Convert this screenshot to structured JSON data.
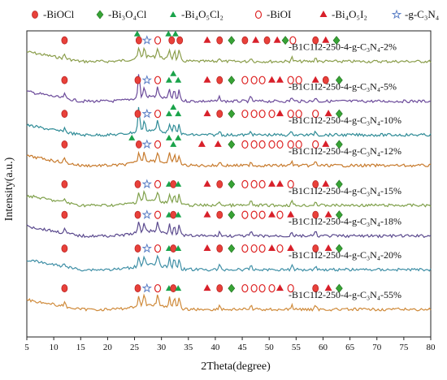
{
  "chart_data": {
    "type": "line",
    "xlabel": "2Theta(degree)",
    "ylabel": "Intensity(a.u.)",
    "xlim": [
      5,
      80
    ],
    "xticks": [
      5,
      10,
      15,
      20,
      25,
      30,
      35,
      40,
      45,
      50,
      55,
      60,
      65,
      70,
      75,
      80
    ],
    "grid": false,
    "legend_position": "top",
    "legend": [
      {
        "marker": "circle-filled",
        "label": "BiOCl",
        "color": "#e8413a"
      },
      {
        "marker": "diamond",
        "label": "Bi₃O₄Cl",
        "color": "#37a335"
      },
      {
        "marker": "triangle-up",
        "label": "Bi₄O₅Cl₂",
        "color": "#1aa34a"
      },
      {
        "marker": "circle-open",
        "label": "BiOI",
        "color": "#e8413a"
      },
      {
        "marker": "triangle-filled",
        "label": "Bi₄O₅I₂",
        "color": "#d8202a"
      },
      {
        "marker": "star",
        "label": "g-C₃N₄",
        "color": "#5b7fc6"
      }
    ],
    "series": [
      {
        "name": "B1C1I2-250-4-g-C₃N₄-2%",
        "color": "#8a9d4a",
        "base": 0.9,
        "markers": [
          {
            "x": 12,
            "m": "circle-filled"
          },
          {
            "x": 25.5,
            "m": "triangle-up"
          },
          {
            "x": 25.8,
            "m": "circle-filled"
          },
          {
            "x": 27.3,
            "m": "star"
          },
          {
            "x": 29.3,
            "m": "circle-open"
          },
          {
            "x": 31.3,
            "m": "triangle-up"
          },
          {
            "x": 31.9,
            "m": "circle-filled"
          },
          {
            "x": 32.6,
            "m": "triangle-up"
          },
          {
            "x": 33.4,
            "m": "circle-filled"
          },
          {
            "x": 38.5,
            "m": "triangle-filled"
          },
          {
            "x": 40.8,
            "m": "circle-filled"
          },
          {
            "x": 43,
            "m": "diamond"
          },
          {
            "x": 45.5,
            "m": "circle-filled"
          },
          {
            "x": 47.5,
            "m": "triangle-filled"
          },
          {
            "x": 49.6,
            "m": "circle-filled"
          },
          {
            "x": 51.5,
            "m": "triangle-filled"
          },
          {
            "x": 53,
            "m": "diamond"
          },
          {
            "x": 54.4,
            "m": "circle-open"
          },
          {
            "x": 58.6,
            "m": "circle-filled"
          },
          {
            "x": 60.5,
            "m": "triangle-filled"
          },
          {
            "x": 62.5,
            "m": "diamond"
          }
        ]
      },
      {
        "name": "B1C1I2-250-4-g-C₃N₄-5%",
        "color": "#6b4a9a",
        "base": 0.77,
        "markers": [
          {
            "x": 12,
            "m": "circle-filled"
          },
          {
            "x": 25.6,
            "m": "circle-filled"
          },
          {
            "x": 27.3,
            "m": "star"
          },
          {
            "x": 29.3,
            "m": "circle-open"
          },
          {
            "x": 31.4,
            "m": "triangle-up"
          },
          {
            "x": 32.2,
            "m": "triangle-up"
          },
          {
            "x": 33.1,
            "m": "triangle-up"
          },
          {
            "x": 38.5,
            "m": "triangle-filled"
          },
          {
            "x": 40.8,
            "m": "circle-filled"
          },
          {
            "x": 43,
            "m": "diamond"
          },
          {
            "x": 45.5,
            "m": "circle-open"
          },
          {
            "x": 47.2,
            "m": "circle-open"
          },
          {
            "x": 48.7,
            "m": "circle-open"
          },
          {
            "x": 50.5,
            "m": "triangle-filled"
          },
          {
            "x": 52,
            "m": "triangle-filled"
          },
          {
            "x": 54,
            "m": "circle-open"
          },
          {
            "x": 55.5,
            "m": "circle-open"
          },
          {
            "x": 58.6,
            "m": "triangle-filled"
          },
          {
            "x": 60.5,
            "m": "circle-filled"
          },
          {
            "x": 63,
            "m": "diamond"
          }
        ]
      },
      {
        "name": "B1C1I2-250-4-g-C₃N₄-10%",
        "color": "#2e8b96",
        "base": 0.66,
        "markers": [
          {
            "x": 12,
            "m": "circle-filled"
          },
          {
            "x": 25.6,
            "m": "circle-filled"
          },
          {
            "x": 27.3,
            "m": "star"
          },
          {
            "x": 29.3,
            "m": "circle-open"
          },
          {
            "x": 31.4,
            "m": "triangle-up"
          },
          {
            "x": 32.2,
            "m": "triangle-up"
          },
          {
            "x": 33.1,
            "m": "triangle-up"
          },
          {
            "x": 38.5,
            "m": "triangle-filled"
          },
          {
            "x": 40.8,
            "m": "circle-filled"
          },
          {
            "x": 43,
            "m": "diamond"
          },
          {
            "x": 45.5,
            "m": "circle-open"
          },
          {
            "x": 47.2,
            "m": "circle-open"
          },
          {
            "x": 48.7,
            "m": "circle-open"
          },
          {
            "x": 50.5,
            "m": "circle-open"
          },
          {
            "x": 52,
            "m": "triangle-filled"
          },
          {
            "x": 54,
            "m": "circle-open"
          },
          {
            "x": 55.5,
            "m": "circle-open"
          },
          {
            "x": 58.6,
            "m": "circle-open"
          },
          {
            "x": 61,
            "m": "triangle-filled"
          },
          {
            "x": 63,
            "m": "diamond"
          }
        ]
      },
      {
        "name": "B1C1I2-250-4-g-C₃N₄-12%",
        "color": "#c77a2c",
        "base": 0.56,
        "markers": [
          {
            "x": 12,
            "m": "circle-filled"
          },
          {
            "x": 24.5,
            "m": "triangle-up"
          },
          {
            "x": 25.8,
            "m": "circle-filled"
          },
          {
            "x": 27.3,
            "m": "star"
          },
          {
            "x": 29.3,
            "m": "circle-open"
          },
          {
            "x": 31.4,
            "m": "triangle-up"
          },
          {
            "x": 32.2,
            "m": "triangle-up"
          },
          {
            "x": 33.1,
            "m": "triangle-up"
          },
          {
            "x": 37.5,
            "m": "triangle-filled"
          },
          {
            "x": 40.5,
            "m": "triangle-filled"
          },
          {
            "x": 43,
            "m": "diamond"
          },
          {
            "x": 45.5,
            "m": "circle-open"
          },
          {
            "x": 47.2,
            "m": "circle-open"
          },
          {
            "x": 48.7,
            "m": "circle-open"
          },
          {
            "x": 50.5,
            "m": "circle-open"
          },
          {
            "x": 52,
            "m": "circle-open"
          },
          {
            "x": 54,
            "m": "circle-open"
          },
          {
            "x": 55.5,
            "m": "circle-open"
          },
          {
            "x": 58.6,
            "m": "circle-open"
          },
          {
            "x": 60.5,
            "m": "triangle-filled"
          },
          {
            "x": 63,
            "m": "diamond"
          }
        ]
      },
      {
        "name": "B1C1I2-250-4-g-C₃N₄-15%",
        "color": "#7fa04a",
        "base": 0.43,
        "markers": [
          {
            "x": 12,
            "m": "circle-filled"
          },
          {
            "x": 25.6,
            "m": "circle-filled"
          },
          {
            "x": 27.3,
            "m": "star"
          },
          {
            "x": 29.3,
            "m": "circle-open"
          },
          {
            "x": 31.4,
            "m": "triangle-up"
          },
          {
            "x": 32.2,
            "m": "circle-filled"
          },
          {
            "x": 33.1,
            "m": "triangle-up"
          },
          {
            "x": 38.5,
            "m": "triangle-filled"
          },
          {
            "x": 40.8,
            "m": "circle-filled"
          },
          {
            "x": 43,
            "m": "diamond"
          },
          {
            "x": 45.5,
            "m": "circle-open"
          },
          {
            "x": 47.2,
            "m": "circle-open"
          },
          {
            "x": 48.7,
            "m": "circle-open"
          },
          {
            "x": 50.5,
            "m": "triangle-filled"
          },
          {
            "x": 52,
            "m": "triangle-filled"
          },
          {
            "x": 54,
            "m": "circle-open"
          },
          {
            "x": 58.6,
            "m": "circle-filled"
          },
          {
            "x": 60.5,
            "m": "triangle-filled"
          },
          {
            "x": 63,
            "m": "diamond"
          }
        ]
      },
      {
        "name": "B1C1I2-250-4-g-C₃N₄-18%",
        "color": "#5b4a8e",
        "base": 0.33,
        "markers": [
          {
            "x": 12,
            "m": "circle-filled"
          },
          {
            "x": 25.6,
            "m": "circle-filled"
          },
          {
            "x": 27.3,
            "m": "star"
          },
          {
            "x": 29.3,
            "m": "circle-open"
          },
          {
            "x": 31.4,
            "m": "triangle-up"
          },
          {
            "x": 32.2,
            "m": "circle-filled"
          },
          {
            "x": 33.1,
            "m": "triangle-up"
          },
          {
            "x": 38.5,
            "m": "triangle-filled"
          },
          {
            "x": 40.8,
            "m": "circle-filled"
          },
          {
            "x": 43,
            "m": "diamond"
          },
          {
            "x": 45.5,
            "m": "circle-open"
          },
          {
            "x": 47.2,
            "m": "circle-open"
          },
          {
            "x": 48.7,
            "m": "circle-open"
          },
          {
            "x": 50.5,
            "m": "triangle-filled"
          },
          {
            "x": 52,
            "m": "circle-open"
          },
          {
            "x": 54,
            "m": "triangle-filled"
          },
          {
            "x": 58.6,
            "m": "circle-filled"
          },
          {
            "x": 61,
            "m": "triangle-filled"
          },
          {
            "x": 63,
            "m": "diamond"
          }
        ]
      },
      {
        "name": "B1C1I2-250-4-g-C₃N₄-20%",
        "color": "#3f8fa6",
        "base": 0.22,
        "markers": [
          {
            "x": 12,
            "m": "circle-filled"
          },
          {
            "x": 25.6,
            "m": "circle-filled"
          },
          {
            "x": 27.3,
            "m": "star"
          },
          {
            "x": 29.3,
            "m": "circle-open"
          },
          {
            "x": 31.4,
            "m": "triangle-up"
          },
          {
            "x": 32.2,
            "m": "circle-filled"
          },
          {
            "x": 33.1,
            "m": "triangle-up"
          },
          {
            "x": 38.5,
            "m": "triangle-filled"
          },
          {
            "x": 40.8,
            "m": "circle-filled"
          },
          {
            "x": 43,
            "m": "diamond"
          },
          {
            "x": 45.5,
            "m": "circle-open"
          },
          {
            "x": 47.2,
            "m": "circle-open"
          },
          {
            "x": 48.7,
            "m": "circle-open"
          },
          {
            "x": 50.5,
            "m": "triangle-filled"
          },
          {
            "x": 52,
            "m": "circle-open"
          },
          {
            "x": 54,
            "m": "triangle-filled"
          },
          {
            "x": 58.6,
            "m": "circle-filled"
          },
          {
            "x": 61,
            "m": "triangle-filled"
          },
          {
            "x": 63,
            "m": "diamond"
          }
        ]
      },
      {
        "name": "B1C1I2-250-4-g-C₃N₄-55%",
        "color": "#cf8a3a",
        "base": 0.09,
        "markers": [
          {
            "x": 12,
            "m": "circle-filled"
          },
          {
            "x": 25.6,
            "m": "circle-filled"
          },
          {
            "x": 27.3,
            "m": "star"
          },
          {
            "x": 29.3,
            "m": "circle-open"
          },
          {
            "x": 31.4,
            "m": "triangle-up"
          },
          {
            "x": 32.2,
            "m": "circle-filled"
          },
          {
            "x": 33.1,
            "m": "triangle-up"
          },
          {
            "x": 38.5,
            "m": "triangle-filled"
          },
          {
            "x": 40.8,
            "m": "circle-filled"
          },
          {
            "x": 43,
            "m": "diamond"
          },
          {
            "x": 45.5,
            "m": "circle-open"
          },
          {
            "x": 47.2,
            "m": "circle-open"
          },
          {
            "x": 48.7,
            "m": "circle-open"
          },
          {
            "x": 50.5,
            "m": "circle-open"
          },
          {
            "x": 52,
            "m": "triangle-filled"
          },
          {
            "x": 54,
            "m": "circle-open"
          },
          {
            "x": 58.6,
            "m": "circle-filled"
          },
          {
            "x": 61,
            "m": "triangle-filled"
          },
          {
            "x": 63,
            "m": "diamond"
          }
        ]
      }
    ],
    "peaks": [
      12,
      25.8,
      26.8,
      29.3,
      31.5,
      32.4,
      33.3,
      40.8,
      46.6,
      54.2,
      58.6
    ]
  }
}
